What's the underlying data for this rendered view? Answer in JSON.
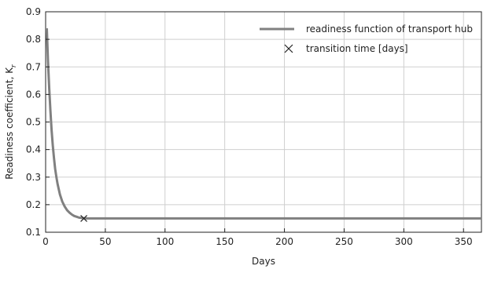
{
  "chart_data": {
    "type": "line",
    "title": "",
    "xlabel": "Days",
    "ylabel": "Readiness coefficient, K",
    "ylabel_subscript": "r",
    "xlim": [
      0,
      365
    ],
    "ylim": [
      0.1,
      0.9
    ],
    "xticks": [
      0,
      50,
      100,
      150,
      200,
      250,
      300,
      350
    ],
    "yticks": [
      0.1,
      0.2,
      0.3,
      0.4,
      0.5,
      0.6,
      0.7,
      0.8,
      0.9
    ],
    "grid": true,
    "legend_position": "top-right",
    "series": [
      {
        "name": "readiness function of transport hub",
        "color": "#808080",
        "x": [
          1,
          2,
          3,
          4,
          5,
          6,
          7,
          8,
          9,
          10,
          12,
          14,
          16,
          18,
          20,
          22,
          24,
          26,
          28,
          30,
          32,
          34,
          36,
          38,
          40,
          50,
          60,
          80,
          100,
          150,
          200,
          250,
          300,
          350,
          365
        ],
        "y": [
          0.84,
          0.72,
          0.62,
          0.54,
          0.47,
          0.415,
          0.37,
          0.33,
          0.3,
          0.275,
          0.237,
          0.211,
          0.193,
          0.18,
          0.171,
          0.164,
          0.159,
          0.156,
          0.153,
          0.152,
          0.151,
          0.15,
          0.15,
          0.15,
          0.15,
          0.15,
          0.15,
          0.15,
          0.15,
          0.15,
          0.15,
          0.15,
          0.15,
          0.15,
          0.15
        ]
      }
    ],
    "markers": [
      {
        "name": "transition time [days]",
        "symbol": "x",
        "x": 32,
        "y": 0.15
      }
    ]
  }
}
